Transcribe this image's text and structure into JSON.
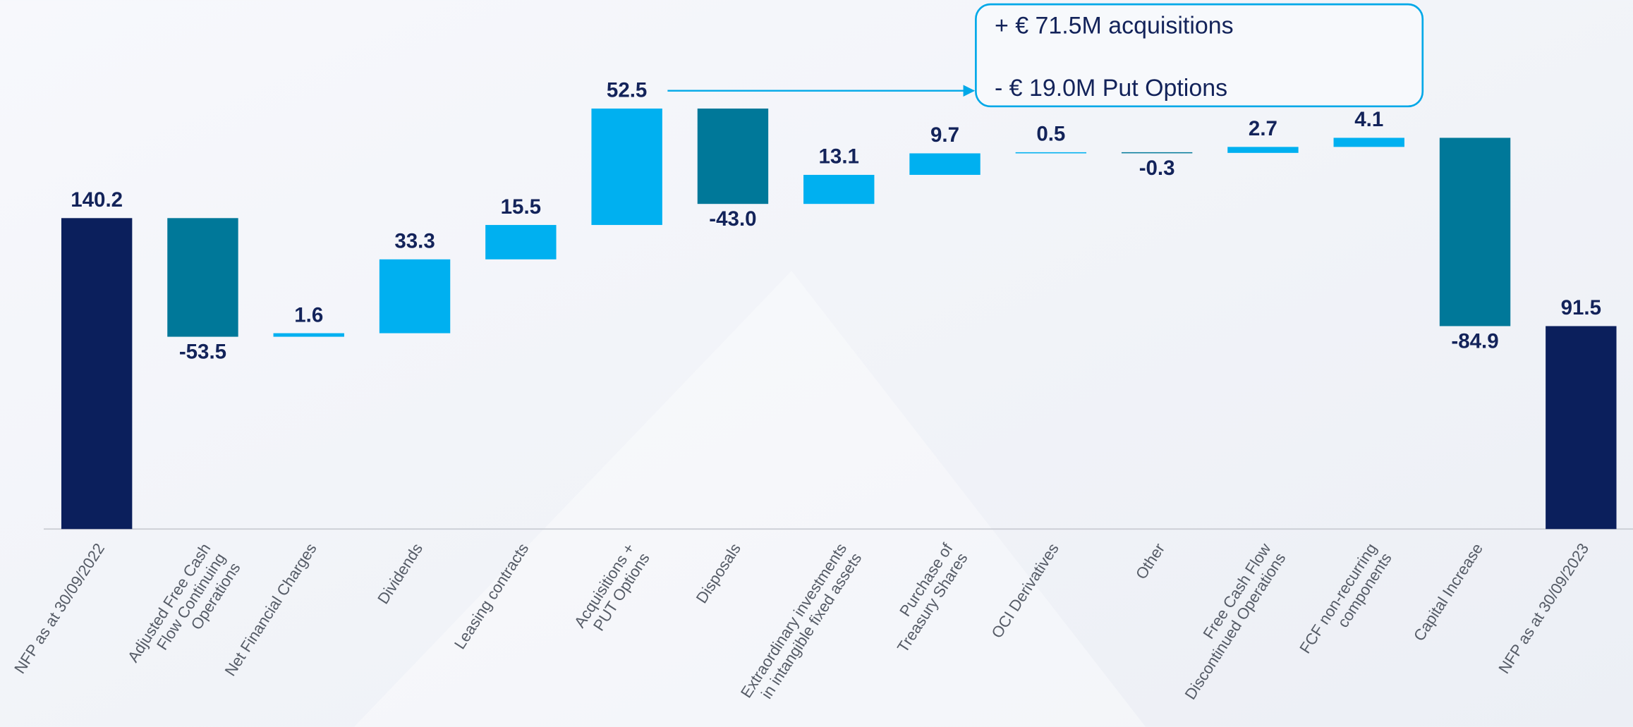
{
  "chart_data": {
    "type": "waterfall",
    "categories": [
      [
        "NFP as at 30/09/2022"
      ],
      [
        "Adjusted Free Cash",
        "Flow Continuing",
        "Operations"
      ],
      [
        "Net Financial Charges"
      ],
      [
        "Dividends"
      ],
      [
        "Leasing contracts"
      ],
      [
        "Acquisitions +",
        "PUT Options"
      ],
      [
        "Disposals"
      ],
      [
        "Extraordinary investments",
        "in intangible fixed assets"
      ],
      [
        "Purchase of",
        "Treasury Shares"
      ],
      [
        "OCI Derivatives"
      ],
      [
        "Other"
      ],
      [
        "Free Cash Flow",
        "Discontinued Operations"
      ],
      [
        "FCF non-recurring",
        "components"
      ],
      [
        "Capital Increase"
      ],
      [
        "NFP as at 30/09/2023"
      ]
    ],
    "values": [
      140.2,
      -53.5,
      1.6,
      33.3,
      15.5,
      52.5,
      -43.0,
      13.1,
      9.7,
      0.5,
      -0.3,
      2.7,
      4.1,
      -84.9,
      91.5
    ],
    "value_labels": [
      "140.2",
      "-53.5",
      "1.6",
      "33.3",
      "15.5",
      "52.5",
      "-43.0",
      "13.1",
      "9.7",
      "0.5",
      "-0.3",
      "2.7",
      "4.1",
      "-84.9",
      "91.5"
    ],
    "measure": [
      "absolute",
      "relative",
      "relative",
      "relative",
      "relative",
      "relative",
      "relative",
      "relative",
      "relative",
      "relative",
      "relative",
      "relative",
      "relative",
      "relative",
      "absolute"
    ],
    "total_color": "#0b1f5c",
    "increase_color": "#00b0f0",
    "decrease_color": "#007899",
    "ylim": [
      0,
      238
    ],
    "annotations": [
      "+ € 71.5M acquisitions",
      "- € 19.0M Put Options"
    ]
  }
}
